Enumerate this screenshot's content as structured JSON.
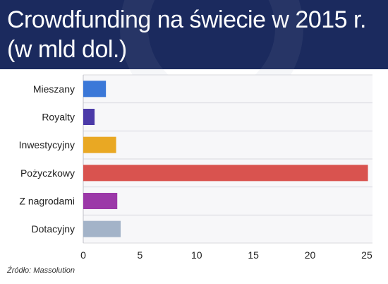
{
  "title_line1": "Crowdfunding na świecie w 2015 r.",
  "title_line2": "(w mld dol.)",
  "source": "Źródło: Massolution",
  "chart_data": {
    "type": "bar",
    "orientation": "horizontal",
    "categories": [
      "Mieszany",
      "Royalty",
      "Inwestycyjny",
      "Pożyczkowy",
      "Z nagrodami",
      "Dotacyjny"
    ],
    "values": [
      2.0,
      1.0,
      2.9,
      25.1,
      3.0,
      3.3
    ],
    "colors": [
      "#3b78d8",
      "#4b3aa8",
      "#e9a823",
      "#d9534f",
      "#9b38a8",
      "#a3b3c8"
    ],
    "xlim": [
      0,
      25.5
    ],
    "xticks": [
      0,
      5,
      10,
      15,
      20,
      25
    ],
    "grid": true,
    "title": "Crowdfunding na świecie w 2015 r. (w mld dol.)"
  }
}
